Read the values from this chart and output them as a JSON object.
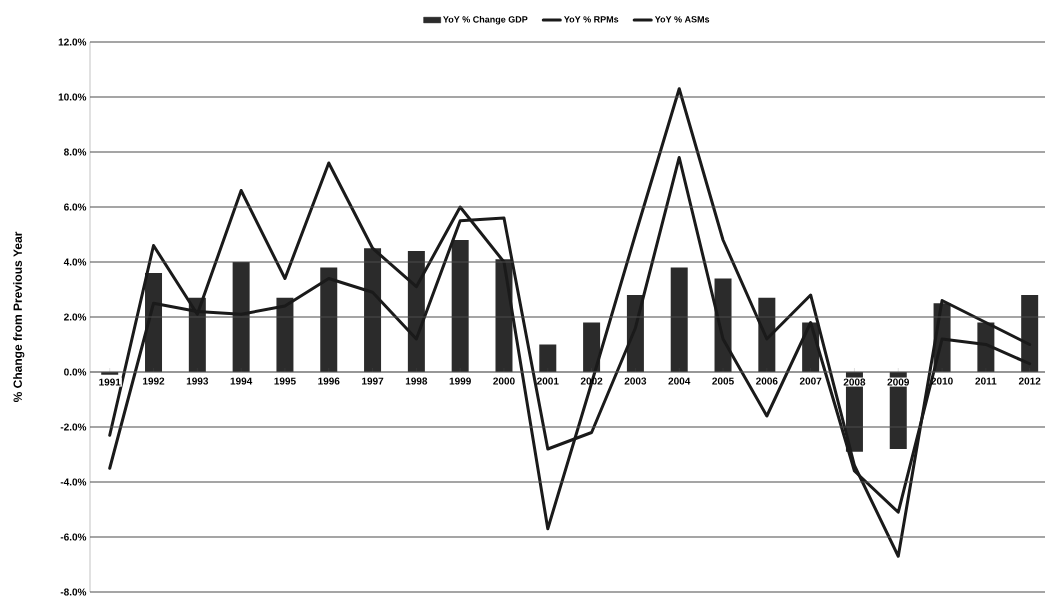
{
  "chart_data": {
    "type": "bar",
    "ylabel": "% Change from Previous Year",
    "categories": [
      "1991",
      "1992",
      "1993",
      "1994",
      "1995",
      "1996",
      "1997",
      "1998",
      "1999",
      "2000",
      "2001",
      "2002",
      "2003",
      "2004",
      "2005",
      "2006",
      "2007",
      "2008",
      "2009",
      "2010",
      "2011",
      "2012"
    ],
    "series": [
      {
        "name": "YoY % Change GDP",
        "color": "#2b2b2b",
        "values": [
          -0.1,
          3.6,
          2.7,
          4.0,
          2.7,
          3.8,
          4.5,
          4.4,
          4.8,
          4.1,
          1.0,
          1.8,
          2.8,
          3.8,
          3.4,
          2.7,
          1.8,
          -2.9,
          -2.8,
          2.5,
          1.8,
          2.8
        ]
      },
      {
        "name": "YoY % RPMs",
        "type": "line",
        "color": "#1a1a1a",
        "values": [
          -2.3,
          4.6,
          2.1,
          6.6,
          3.4,
          7.6,
          4.5,
          3.1,
          6.0,
          4.0,
          -5.7,
          -0.4,
          5.0,
          10.3,
          4.8,
          1.2,
          2.8,
          -3.4,
          -6.7,
          2.6,
          1.8,
          1.0
        ]
      },
      {
        "name": "YoY % ASMs",
        "type": "line",
        "color": "#1a1a1a",
        "values": [
          -3.5,
          2.5,
          2.2,
          2.1,
          2.4,
          3.4,
          2.9,
          1.2,
          5.5,
          5.6,
          -2.8,
          -2.2,
          1.6,
          7.8,
          1.2,
          -1.6,
          1.8,
          -3.6,
          -5.1,
          1.2,
          1.0,
          0.3
        ]
      }
    ],
    "ylim": [
      -8,
      12
    ],
    "yticks": [
      {
        "value": -8,
        "label": "-8.0%"
      },
      {
        "value": -6,
        "label": "-6.0%"
      },
      {
        "value": -4,
        "label": "-4.0%"
      },
      {
        "value": -2,
        "label": "-2.0%"
      },
      {
        "value": 0,
        "label": "0.0%"
      },
      {
        "value": 2,
        "label": "2.0%"
      },
      {
        "value": 4,
        "label": "4.0%"
      },
      {
        "value": 6,
        "label": "6.0%"
      },
      {
        "value": 8,
        "label": "8.0%"
      },
      {
        "value": 10,
        "label": "10.0%"
      },
      {
        "value": 12,
        "label": "12.0%"
      }
    ],
    "grid": "y",
    "legend": "top"
  }
}
